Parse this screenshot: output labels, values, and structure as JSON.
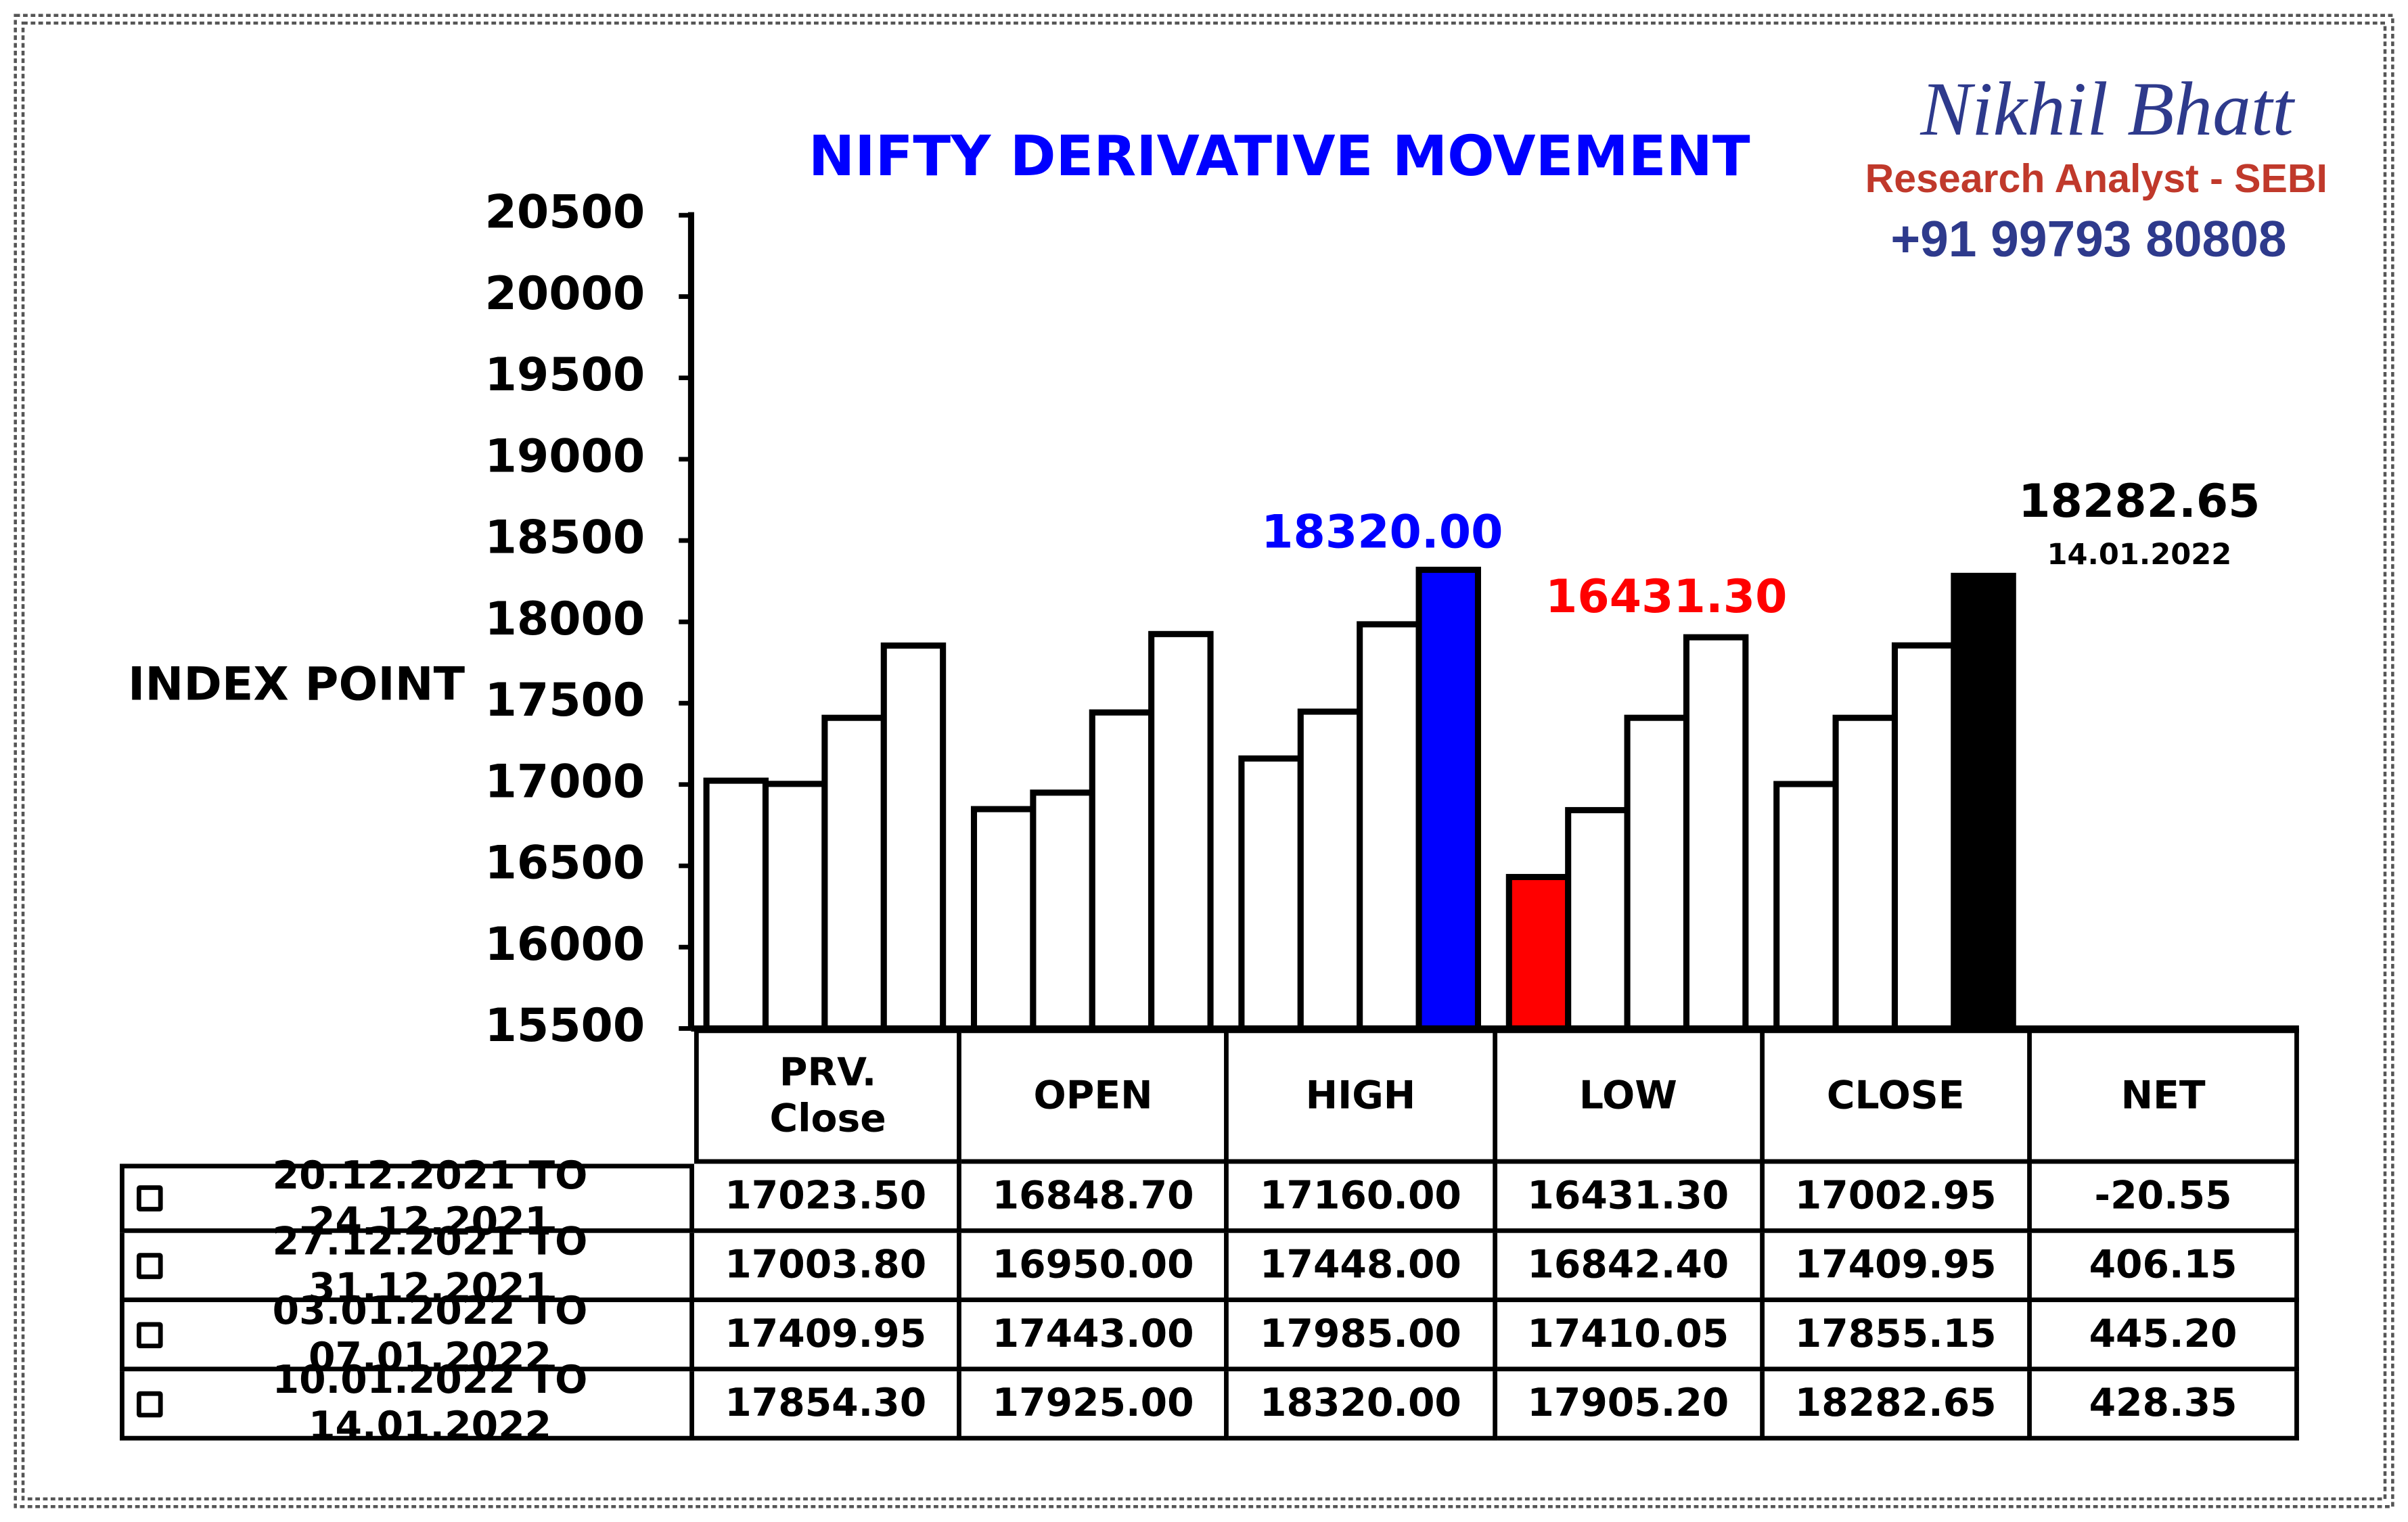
{
  "chart_data": {
    "type": "bar",
    "title": "NIFTY DERIVATIVE MOVEMENT",
    "y_label": "INDEX POINT",
    "brand": {
      "name": "Nikhil Bhatt",
      "role": "Research Analyst - SEBI",
      "phone": "+91 99793 80808"
    },
    "annotation": "14.01.2022",
    "categories": [
      "PRV.\nClose",
      "OPEN",
      "HIGH",
      "LOW",
      "CLOSE"
    ],
    "color": "#ffffff",
    "series": [
      {
        "name": "20.12.2021 TO 24.12.2021",
        "values": [
          17023.5,
          16848.7,
          17160,
          16431.3,
          17002.95
        ],
        "value_labels": [
          "17023.50",
          "16848.70",
          "17160.00",
          "16431.30",
          "17002.95"
        ],
        "colors": [
          "#ffffff",
          "#ffffff",
          "#ffffff",
          "#ff0000",
          "#ffffff"
        ]
      },
      {
        "name": "27.12.2021 TO 31.12.2021",
        "values": [
          17003.8,
          16950,
          17448,
          16842.4,
          17409.95
        ],
        "value_labels": [
          "17003.80",
          "16950.00",
          "17448.00",
          "16842.40",
          "17409.95"
        ],
        "colors": [
          "#ffffff",
          "#ffffff",
          "#ffffff",
          "#ffffff",
          "#ffffff"
        ]
      },
      {
        "name": "03.01.2022 TO 07.01.2022",
        "values": [
          17409.95,
          17443,
          17985,
          17410.05,
          17855.15
        ],
        "value_labels": [
          "17409.95",
          "17443.00",
          "17985.00",
          "17410.05",
          "17855.15"
        ],
        "colors": [
          "#ffffff",
          "#ffffff",
          "#ffffff",
          "#ffffff",
          "#ffffff"
        ]
      },
      {
        "name": "10.01.2022 TO 14.01.2022",
        "values": [
          17854.3,
          17925,
          18320,
          17905.2,
          18282.65
        ],
        "value_labels": [
          "17854.30",
          "17925.00",
          "18320.00",
          "17905.20",
          "18282.65"
        ],
        "colors": [
          "#ffffff",
          "#ffffff",
          "#0000ff",
          "#ffffff",
          "#000000"
        ]
      }
    ],
    "net": {
      "label": "NET",
      "values": [
        -20.55,
        406.15,
        445.2,
        428.35
      ],
      "value_labels": [
        "-20.55",
        "406.15",
        "445.20",
        "428.35"
      ]
    },
    "ylim": [
      15500,
      20500
    ],
    "yticks": [
      15500,
      16000,
      16500,
      17000,
      17500,
      18000,
      18500,
      19000,
      19500,
      20000,
      20500
    ]
  }
}
